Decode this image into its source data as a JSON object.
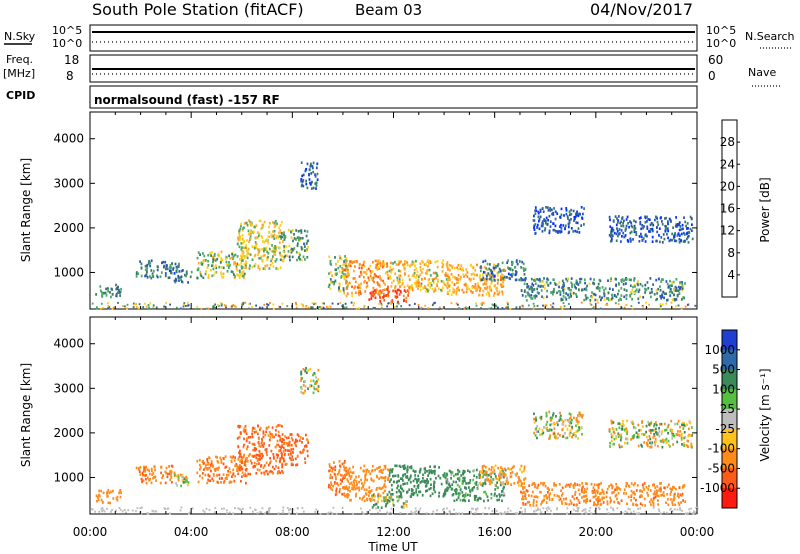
{
  "header": {
    "station": "South Pole Station (fitACF)",
    "beam": "Beam 03",
    "date": "04/Nov/2017",
    "cpid_label": "CPID",
    "cpid_text": "normalsound (fast) -157 RF"
  },
  "strip_nsky": {
    "left_label": "N.Sky",
    "right_label": "N.Search",
    "left_ticks": [
      "10^5",
      "10^0"
    ],
    "right_ticks": [
      "10^5",
      "10^0"
    ]
  },
  "strip_freq": {
    "left_label_1": "Freq.",
    "left_label_2": "[MHz]",
    "right_label": "Nave",
    "left_ticks": [
      "18",
      "8"
    ],
    "right_ticks": [
      "60",
      "0"
    ]
  },
  "panels": {
    "ylabel": "Slant Range [km]",
    "yticks": [
      "4000",
      "3000",
      "2000",
      "1000"
    ],
    "xticks": [
      "00:00",
      "04:00",
      "08:00",
      "12:00",
      "16:00",
      "20:00",
      "00:00"
    ],
    "xlabel": "Time UT"
  },
  "power_bar": {
    "label": "Power [dB]",
    "ticks": [
      "28",
      "24",
      "20",
      "16",
      "12",
      "8",
      "4"
    ],
    "colors": [
      "#0033ff",
      "#2b56b0",
      "#3a7a6a",
      "#4aa86a",
      "#ffd21a",
      "#ffae2b",
      "#ff8a1a",
      "#ff5a1a",
      "#ff2a10"
    ]
  },
  "velocity_bar": {
    "label": "Velocity [m s⁻¹]",
    "ticks": [
      "1000",
      "500",
      "100",
      "25",
      "-25",
      "-100",
      "-500",
      "-1000"
    ],
    "colors": [
      "#1f3fd1",
      "#2f6aa8",
      "#3c8a5a",
      "#55c040",
      "#bdbdbd",
      "#ffc21a",
      "#ff8c1a",
      "#ff5a1a",
      "#ff1a10"
    ]
  },
  "chart_data": {
    "type": "heatmap",
    "title": "South Pole Station (fitACF) Beam 03 04/Nov/2017",
    "xlabel": "Time UT",
    "ylabel": "Slant Range [km]",
    "xlim": [
      "00:00",
      "24:00"
    ],
    "ylim": [
      180,
      4600
    ],
    "panels": [
      "Power [dB]",
      "Velocity [m s-1]"
    ],
    "power_range_db": [
      0,
      32
    ],
    "velocity_range_ms": [
      -1000,
      1000
    ],
    "power_blobs": [
      {
        "t": [
          0.2,
          1.2
        ],
        "r": [
          450,
          750
        ],
        "v": 10
      },
      {
        "t": [
          1.8,
          3.5
        ],
        "r": [
          900,
          1300
        ],
        "v": 8
      },
      {
        "t": [
          3.3,
          4.0
        ],
        "r": [
          800,
          1100
        ],
        "v": 9
      },
      {
        "t": [
          4.2,
          6.2
        ],
        "r": [
          900,
          1500
        ],
        "v": 14
      },
      {
        "t": [
          5.8,
          7.6
        ],
        "r": [
          1100,
          2200
        ],
        "v": 16
      },
      {
        "t": [
          7.5,
          8.6
        ],
        "r": [
          1300,
          2000
        ],
        "v": 12
      },
      {
        "t": [
          8.3,
          9.0
        ],
        "r": [
          2900,
          3500
        ],
        "v": 6
      },
      {
        "t": [
          9.4,
          10.2
        ],
        "r": [
          600,
          1400
        ],
        "v": 14
      },
      {
        "t": [
          10.0,
          11.8
        ],
        "r": [
          500,
          1300
        ],
        "v": 22
      },
      {
        "t": [
          11.0,
          12.6
        ],
        "r": [
          350,
          650
        ],
        "v": 28
      },
      {
        "t": [
          11.8,
          14.2
        ],
        "r": [
          600,
          1300
        ],
        "v": 18
      },
      {
        "t": [
          14.0,
          16.4
        ],
        "r": [
          500,
          1200
        ],
        "v": 20
      },
      {
        "t": [
          15.4,
          17.2
        ],
        "r": [
          850,
          1300
        ],
        "v": 8
      },
      {
        "t": [
          17.5,
          19.5
        ],
        "r": [
          1900,
          2500
        ],
        "v": 5
      },
      {
        "t": [
          20.5,
          23.8
        ],
        "r": [
          1700,
          2300
        ],
        "v": 5
      },
      {
        "t": [
          17.0,
          23.5
        ],
        "r": [
          400,
          900
        ],
        "v": 10
      }
    ],
    "velocity_blobs": [
      {
        "t": [
          0.2,
          1.2
        ],
        "r": [
          450,
          750
        ],
        "v": -300
      },
      {
        "t": [
          1.8,
          3.5
        ],
        "r": [
          900,
          1300
        ],
        "v": -400
      },
      {
        "t": [
          3.3,
          4.0
        ],
        "r": [
          800,
          1100
        ],
        "v": 0
      },
      {
        "t": [
          4.2,
          6.2
        ],
        "r": [
          900,
          1500
        ],
        "v": -450
      },
      {
        "t": [
          5.8,
          7.6
        ],
        "r": [
          1100,
          2200
        ],
        "v": -550
      },
      {
        "t": [
          7.5,
          8.6
        ],
        "r": [
          1300,
          2000
        ],
        "v": -600
      },
      {
        "t": [
          8.3,
          9.0
        ],
        "r": [
          2900,
          3500
        ],
        "v": 0
      },
      {
        "t": [
          9.4,
          10.2
        ],
        "r": [
          600,
          1400
        ],
        "v": -500
      },
      {
        "t": [
          10.0,
          11.8
        ],
        "r": [
          500,
          1300
        ],
        "v": -300
      },
      {
        "t": [
          11.0,
          12.6
        ],
        "r": [
          350,
          650
        ],
        "v": 80
      },
      {
        "t": [
          11.8,
          14.2
        ],
        "r": [
          600,
          1300
        ],
        "v": 300
      },
      {
        "t": [
          14.0,
          16.4
        ],
        "r": [
          500,
          1200
        ],
        "v": 200
      },
      {
        "t": [
          15.4,
          17.2
        ],
        "r": [
          850,
          1300
        ],
        "v": -200
      },
      {
        "t": [
          17.5,
          19.5
        ],
        "r": [
          1900,
          2500
        ],
        "v": 0
      },
      {
        "t": [
          20.5,
          23.8
        ],
        "r": [
          1700,
          2300
        ],
        "v": 0
      },
      {
        "t": [
          17.0,
          23.5
        ],
        "r": [
          400,
          900
        ],
        "v": -350
      }
    ]
  }
}
